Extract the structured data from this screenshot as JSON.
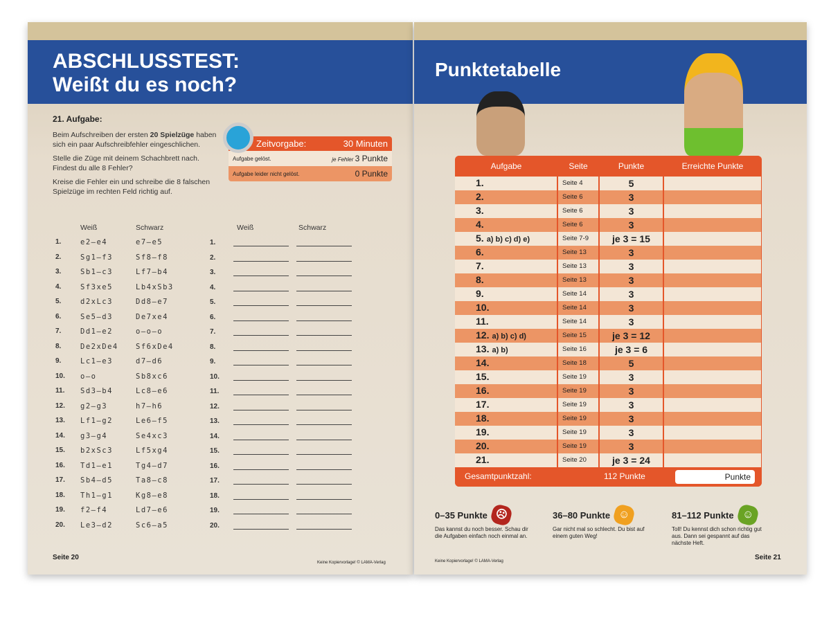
{
  "left": {
    "title_line1": "ABSCHLUSSTEST:",
    "title_line2": "Weißt du es noch?",
    "task_heading": "21. Aufgabe:",
    "p1_a": "Beim Aufschreiben der ersten ",
    "p1_bold": "20 Spielzüge",
    "p1_b": " haben sich ein paar Aufschreibfehler eingeschlichen.",
    "p2": "Stelle die Züge mit deinem Schachbrett nach. Findest du alle 8 Fehler?",
    "p3": "Kreise die Fehler ein und schreibe die 8 falschen Spielzüge im rechten Feld richtig auf.",
    "time_box": {
      "label": "Zeitvorgabe:",
      "value": "30 Minuten",
      "solved": "Aufgabe gelöst.",
      "per_error": "je Fehler",
      "solved_points": "3 Punkte",
      "not_solved": "Aufgabe leider nicht gelöst.",
      "not_solved_points": "0 Punkte"
    },
    "col_white": "Weiß",
    "col_black": "Schwarz",
    "moves": [
      [
        "1.",
        "e2–e4",
        "e7–e5"
      ],
      [
        "2.",
        "Sg1–f3",
        "Sf8–f8"
      ],
      [
        "3.",
        "Sb1–c3",
        "Lf7–b4"
      ],
      [
        "4.",
        "Sf3xe5",
        "Lb4xSb3"
      ],
      [
        "5.",
        "d2xLc3",
        "Dd8–e7"
      ],
      [
        "6.",
        "Se5–d3",
        "De7xe4"
      ],
      [
        "7.",
        "Dd1–e2",
        "o–o–o"
      ],
      [
        "8.",
        "De2xDe4",
        "Sf6xDe4"
      ],
      [
        "9.",
        "Lc1–e3",
        "d7–d6"
      ],
      [
        "10.",
        "o–o",
        "Sb8xc6"
      ],
      [
        "11.",
        "Sd3–b4",
        "Lc8–e6"
      ],
      [
        "12.",
        "g2–g3",
        "h7–h6"
      ],
      [
        "13.",
        "Lf1–g2",
        "Le6–f5"
      ],
      [
        "14.",
        "g3–g4",
        "Se4xc3"
      ],
      [
        "15.",
        "b2xSc3",
        "Lf5xg4"
      ],
      [
        "16.",
        "Td1–e1",
        "Tg4–d7"
      ],
      [
        "17.",
        "Sb4–d5",
        "Ta8–c8"
      ],
      [
        "18.",
        "Th1–g1",
        "Kg8–e8"
      ],
      [
        "19.",
        "f2–f4",
        "Ld7–e6"
      ],
      [
        "20.",
        "Le3–d2",
        "Sc6–a5"
      ]
    ],
    "page_no": "Seite 20",
    "copyright": "Keine Kopiervorlage! © LAMA-Verlag"
  },
  "right": {
    "title": "Punktetabelle",
    "headers": [
      "Aufgabe",
      "Seite",
      "Punkte",
      "Erreichte Punkte"
    ],
    "rows": [
      [
        "1.",
        "",
        "Seite 4",
        "5"
      ],
      [
        "2.",
        "",
        "Seite 6",
        "3"
      ],
      [
        "3.",
        "",
        "Seite 6",
        "3"
      ],
      [
        "4.",
        "",
        "Seite 6",
        "3"
      ],
      [
        "5.",
        "a) b) c) d) e)",
        "Seite 7-9",
        "je 3 = 15"
      ],
      [
        "6.",
        "",
        "Seite 13",
        "3"
      ],
      [
        "7.",
        "",
        "Seite 13",
        "3"
      ],
      [
        "8.",
        "",
        "Seite 13",
        "3"
      ],
      [
        "9.",
        "",
        "Seite 14",
        "3"
      ],
      [
        "10.",
        "",
        "Seite 14",
        "3"
      ],
      [
        "11.",
        "",
        "Seite 14",
        "3"
      ],
      [
        "12.",
        "a) b) c) d)",
        "Seite 15",
        "je 3 = 12"
      ],
      [
        "13.",
        "a) b)",
        "Seite 16",
        "je 3 = 6"
      ],
      [
        "14.",
        "",
        "Seite 18",
        "5"
      ],
      [
        "15.",
        "",
        "Seite 19",
        "3"
      ],
      [
        "16.",
        "",
        "Seite 19",
        "3"
      ],
      [
        "17.",
        "",
        "Seite 19",
        "3"
      ],
      [
        "18.",
        "",
        "Seite 19",
        "3"
      ],
      [
        "19.",
        "",
        "Seite 19",
        "3"
      ],
      [
        "20.",
        "",
        "Seite 19",
        "3"
      ],
      [
        "21.",
        "",
        "Seite 20",
        "je 3 = 24"
      ]
    ],
    "total_label": "Gesamtpunktzahl:",
    "total_value": "112 Punkte",
    "total_field": "Punkte",
    "ratings": [
      {
        "range": "0–35 Punkte",
        "text": "Das kannst du noch besser. Schau dir die Aufgaben einfach noch einmal an.",
        "color": "#b3261e",
        "face": "☹"
      },
      {
        "range": "36–80 Punkte",
        "text": "Gar nicht mal so schlecht. Du bist auf einem guten Weg!",
        "color": "#f0a020",
        "face": "☺"
      },
      {
        "range": "81–112 Punkte",
        "text": "Toll! Du kennst dich schon richtig gut aus. Dann sei gespannt auf das nächste Heft.",
        "color": "#6aa324",
        "face": "☺"
      }
    ],
    "copyright": "Keine Kopiervorlage! © LAMA-Verlag",
    "page_no": "Seite 21"
  }
}
